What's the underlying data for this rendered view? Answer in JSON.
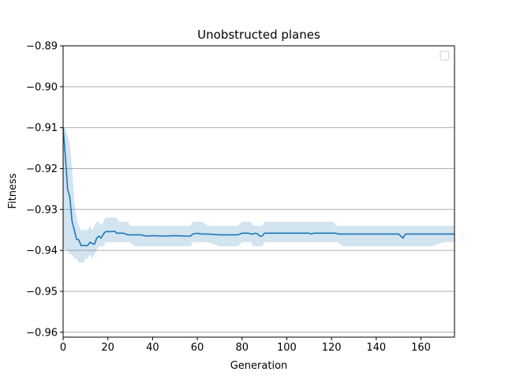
{
  "chart_data": {
    "type": "line",
    "title": "Unobstructed planes",
    "xlabel": "Generation",
    "ylabel": "Fitness",
    "xlim": [
      0,
      175
    ],
    "ylim": [
      -0.9612,
      -0.89
    ],
    "xticks": [
      0,
      20,
      40,
      60,
      80,
      100,
      120,
      140,
      160
    ],
    "xtick_labels": [
      "0",
      "20",
      "40",
      "60",
      "80",
      "100",
      "120",
      "140",
      "160"
    ],
    "yticks": [
      -0.89,
      -0.9,
      -0.91,
      -0.92,
      -0.93,
      -0.94,
      -0.95,
      -0.96
    ],
    "ytick_labels": [
      "−0.89",
      "−0.90",
      "−0.91",
      "−0.92",
      "−0.93",
      "−0.94",
      "−0.95",
      "−0.96"
    ],
    "grid": "horizontal",
    "legend": "top-right (empty)",
    "colors": {
      "line": "#1f77b4",
      "band": "#1f77b4",
      "grid": "#b0b0b0"
    },
    "series": [
      {
        "x": [
          0,
          1,
          2,
          3,
          4,
          5,
          6,
          7,
          8,
          9,
          10,
          11,
          12,
          13,
          14,
          15,
          16,
          17,
          18,
          19,
          20,
          21,
          22,
          23,
          24,
          25,
          27,
          29,
          30,
          32,
          35,
          37,
          40,
          45,
          50,
          55,
          57,
          58,
          60,
          62,
          65,
          70,
          75,
          78,
          80,
          83,
          84,
          85,
          86,
          87,
          88,
          89,
          90,
          95,
          100,
          105,
          110,
          111,
          112,
          115,
          120,
          121,
          122,
          123,
          125,
          130,
          135,
          140,
          145,
          150,
          151,
          152,
          153,
          155,
          160,
          165,
          170,
          175
        ],
        "mean": [
          -0.91,
          -0.917,
          -0.925,
          -0.927,
          -0.933,
          -0.935,
          -0.9373,
          -0.9374,
          -0.9388,
          -0.9388,
          -0.9388,
          -0.9388,
          -0.938,
          -0.9383,
          -0.9385,
          -0.937,
          -0.9365,
          -0.937,
          -0.936,
          -0.9354,
          -0.9354,
          -0.9354,
          -0.9354,
          -0.9353,
          -0.9358,
          -0.9358,
          -0.9358,
          -0.9362,
          -0.9362,
          -0.9362,
          -0.9362,
          -0.9365,
          -0.9364,
          -0.9365,
          -0.9364,
          -0.9365,
          -0.9365,
          -0.936,
          -0.9358,
          -0.936,
          -0.936,
          -0.9362,
          -0.9362,
          -0.9362,
          -0.9358,
          -0.9358,
          -0.936,
          -0.936,
          -0.9358,
          -0.936,
          -0.9365,
          -0.9365,
          -0.9358,
          -0.9358,
          -0.9358,
          -0.9358,
          -0.9358,
          -0.936,
          -0.9358,
          -0.9358,
          -0.9358,
          -0.9358,
          -0.9358,
          -0.936,
          -0.936,
          -0.936,
          -0.936,
          -0.936,
          -0.936,
          -0.936,
          -0.9365,
          -0.937,
          -0.936,
          -0.936,
          -0.936,
          -0.936,
          -0.936,
          -0.936
        ],
        "lower": [
          -0.939,
          -0.94,
          -0.94,
          -0.941,
          -0.941,
          -0.942,
          -0.942,
          -0.943,
          -0.943,
          -0.943,
          -0.942,
          -0.942,
          -0.941,
          -0.942,
          -0.941,
          -0.94,
          -0.939,
          -0.939,
          -0.939,
          -0.938,
          -0.938,
          -0.938,
          -0.938,
          -0.938,
          -0.938,
          -0.938,
          -0.938,
          -0.938,
          -0.938,
          -0.939,
          -0.939,
          -0.939,
          -0.939,
          -0.939,
          -0.939,
          -0.939,
          -0.939,
          -0.938,
          -0.938,
          -0.938,
          -0.938,
          -0.939,
          -0.939,
          -0.939,
          -0.938,
          -0.938,
          -0.938,
          -0.939,
          -0.939,
          -0.939,
          -0.939,
          -0.939,
          -0.938,
          -0.938,
          -0.938,
          -0.938,
          -0.938,
          -0.938,
          -0.938,
          -0.938,
          -0.938,
          -0.938,
          -0.938,
          -0.938,
          -0.939,
          -0.939,
          -0.939,
          -0.939,
          -0.939,
          -0.939,
          -0.939,
          -0.939,
          -0.939,
          -0.939,
          -0.939,
          -0.939,
          -0.938,
          -0.938
        ],
        "upper": [
          -0.91,
          -0.91,
          -0.912,
          -0.914,
          -0.92,
          -0.928,
          -0.932,
          -0.934,
          -0.935,
          -0.935,
          -0.935,
          -0.935,
          -0.934,
          -0.935,
          -0.934,
          -0.933,
          -0.933,
          -0.934,
          -0.933,
          -0.932,
          -0.932,
          -0.932,
          -0.932,
          -0.932,
          -0.932,
          -0.933,
          -0.933,
          -0.933,
          -0.934,
          -0.934,
          -0.934,
          -0.934,
          -0.934,
          -0.934,
          -0.934,
          -0.934,
          -0.934,
          -0.933,
          -0.933,
          -0.933,
          -0.934,
          -0.934,
          -0.934,
          -0.934,
          -0.933,
          -0.933,
          -0.933,
          -0.934,
          -0.934,
          -0.934,
          -0.934,
          -0.934,
          -0.933,
          -0.933,
          -0.933,
          -0.933,
          -0.933,
          -0.933,
          -0.933,
          -0.933,
          -0.933,
          -0.933,
          -0.934,
          -0.934,
          -0.934,
          -0.934,
          -0.934,
          -0.934,
          -0.934,
          -0.934,
          -0.934,
          -0.934,
          -0.934,
          -0.934,
          -0.934,
          -0.934,
          -0.934,
          -0.934
        ]
      }
    ]
  }
}
